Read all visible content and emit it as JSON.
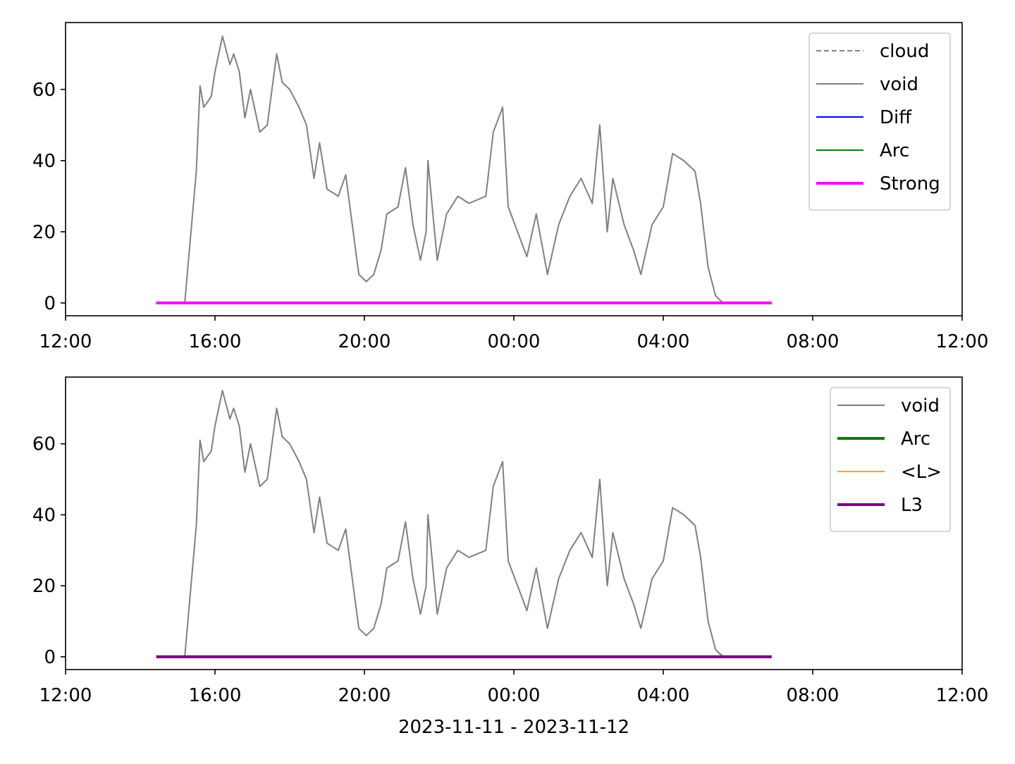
{
  "chart_data": [
    {
      "type": "line",
      "xlim": [
        0,
        24
      ],
      "xticks": [
        {
          "value": 0,
          "label": "12:00"
        },
        {
          "value": 4,
          "label": "16:00"
        },
        {
          "value": 8,
          "label": "20:00"
        },
        {
          "value": 12,
          "label": "00:00"
        },
        {
          "value": 16,
          "label": "04:00"
        },
        {
          "value": 20,
          "label": "08:00"
        },
        {
          "value": 24,
          "label": "12:00"
        }
      ],
      "ylim": [
        -3.6,
        78.8
      ],
      "yticks": [
        0,
        20,
        40,
        60
      ],
      "legend": "upper right",
      "series": [
        {
          "name": "cloud",
          "color": "#808080",
          "linestyle": "dashed",
          "linewidth": 2,
          "x": [
            2.43,
            18.9
          ],
          "values": [
            0,
            0
          ]
        },
        {
          "name": "void",
          "color": "#808080",
          "linestyle": "solid",
          "linewidth": 2,
          "x": [
            3.19,
            3.5,
            3.6,
            3.7,
            3.9,
            4.0,
            4.2,
            4.4,
            4.5,
            4.65,
            4.8,
            4.95,
            5.2,
            5.4,
            5.65,
            5.8,
            6.0,
            6.25,
            6.45,
            6.65,
            6.8,
            7.0,
            7.3,
            7.5,
            7.7,
            7.85,
            8.05,
            8.25,
            8.45,
            8.6,
            8.9,
            9.1,
            9.3,
            9.5,
            9.65,
            9.7,
            9.95,
            10.2,
            10.5,
            10.8,
            11.25,
            11.45,
            11.7,
            11.85,
            12.1,
            12.35,
            12.6,
            12.9,
            13.2,
            13.5,
            13.8,
            14.1,
            14.3,
            14.5,
            14.65,
            14.95,
            15.2,
            15.4,
            15.7,
            16.0,
            16.25,
            16.55,
            16.85,
            17.0,
            17.2,
            17.4,
            17.6
          ],
          "values": [
            0,
            37,
            61,
            55,
            58,
            65,
            75,
            67,
            70,
            65,
            52,
            60,
            48,
            50,
            70,
            62,
            60,
            55,
            50,
            35,
            45,
            32,
            30,
            36,
            20,
            8,
            6,
            8,
            15,
            25,
            27,
            38,
            22,
            12,
            20,
            40,
            12,
            25,
            30,
            28,
            30,
            48,
            55,
            27,
            20,
            13,
            25,
            8,
            22,
            30,
            35,
            28,
            50,
            20,
            35,
            22,
            15,
            8,
            22,
            27,
            42,
            40,
            37,
            28,
            10,
            2,
            0
          ]
        },
        {
          "name": "Diff",
          "color": "#0000ff",
          "linestyle": "solid",
          "linewidth": 2,
          "x": [
            2.43,
            18.9
          ],
          "values": [
            0,
            0
          ]
        },
        {
          "name": "Arc",
          "color": "#008000",
          "linestyle": "solid",
          "linewidth": 2,
          "x": [
            2.43,
            18.9
          ],
          "values": [
            0,
            0
          ]
        },
        {
          "name": "Strong",
          "color": "#ff00ff",
          "linestyle": "solid",
          "linewidth": 4,
          "x": [
            2.43,
            18.9
          ],
          "values": [
            0,
            0
          ]
        }
      ]
    },
    {
      "type": "line",
      "xlabel": "2023-11-11 - 2023-11-12",
      "xlim": [
        0,
        24
      ],
      "xticks": [
        {
          "value": 0,
          "label": "12:00"
        },
        {
          "value": 4,
          "label": "16:00"
        },
        {
          "value": 8,
          "label": "20:00"
        },
        {
          "value": 12,
          "label": "00:00"
        },
        {
          "value": 16,
          "label": "04:00"
        },
        {
          "value": 20,
          "label": "08:00"
        },
        {
          "value": 24,
          "label": "12:00"
        }
      ],
      "ylim": [
        -3.6,
        78.8
      ],
      "yticks": [
        0,
        20,
        40,
        60
      ],
      "legend": "upper right",
      "series": [
        {
          "name": "void",
          "color": "#808080",
          "linestyle": "solid",
          "linewidth": 2,
          "x": [
            3.19,
            3.5,
            3.6,
            3.7,
            3.9,
            4.0,
            4.2,
            4.4,
            4.5,
            4.65,
            4.8,
            4.95,
            5.2,
            5.4,
            5.65,
            5.8,
            6.0,
            6.25,
            6.45,
            6.65,
            6.8,
            7.0,
            7.3,
            7.5,
            7.7,
            7.85,
            8.05,
            8.25,
            8.45,
            8.6,
            8.9,
            9.1,
            9.3,
            9.5,
            9.65,
            9.7,
            9.95,
            10.2,
            10.5,
            10.8,
            11.25,
            11.45,
            11.7,
            11.85,
            12.1,
            12.35,
            12.6,
            12.9,
            13.2,
            13.5,
            13.8,
            14.1,
            14.3,
            14.5,
            14.65,
            14.95,
            15.2,
            15.4,
            15.7,
            16.0,
            16.25,
            16.55,
            16.85,
            17.0,
            17.2,
            17.4,
            17.6
          ],
          "values": [
            0,
            37,
            61,
            55,
            58,
            65,
            75,
            67,
            70,
            65,
            52,
            60,
            48,
            50,
            70,
            62,
            60,
            55,
            50,
            35,
            45,
            32,
            30,
            36,
            20,
            8,
            6,
            8,
            15,
            25,
            27,
            38,
            22,
            12,
            20,
            40,
            12,
            25,
            30,
            28,
            30,
            48,
            55,
            27,
            20,
            13,
            25,
            8,
            22,
            30,
            35,
            28,
            50,
            20,
            35,
            22,
            15,
            8,
            22,
            27,
            42,
            40,
            37,
            28,
            10,
            2,
            0
          ]
        },
        {
          "name": "Arc",
          "color": "#008000",
          "linestyle": "solid",
          "linewidth": 4,
          "x": [
            2.43,
            18.9
          ],
          "values": [
            0,
            0
          ]
        },
        {
          "name": "<L>",
          "color": "#ffa500",
          "linestyle": "solid",
          "linewidth": 2,
          "x": [
            2.43,
            18.9
          ],
          "values": [
            0,
            0
          ]
        },
        {
          "name": "L3",
          "color": "#800080",
          "linestyle": "solid",
          "linewidth": 4,
          "x": [
            2.43,
            18.9
          ],
          "values": [
            0,
            0
          ]
        }
      ]
    }
  ]
}
